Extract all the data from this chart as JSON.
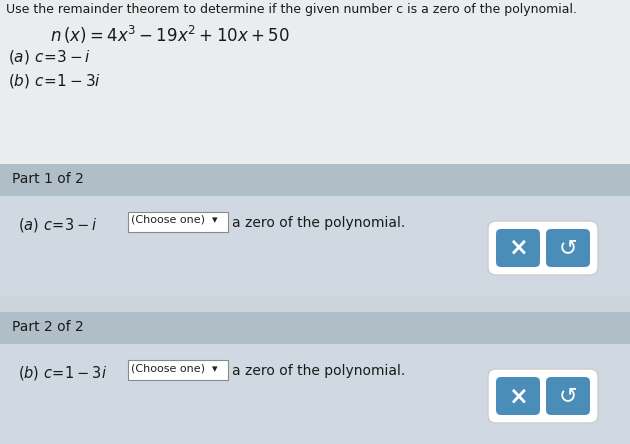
{
  "bg_color": "#ccd4dc",
  "top_bg": "#e8ecef",
  "title_text": "Use the remainder theorem to determine if the given number c is a zero of the polynomial.",
  "part1_header": "Part 1 of 2",
  "part2_header": "Part 2 of 2",
  "choose_one_text": "(Choose one)  ▾",
  "suffix_text": "a zero of the polynomial.",
  "btn_color": "#4a8db8",
  "part_header_bg": "#b0bec8",
  "part_content_bg": "#d0d9e2",
  "dropdown_border": "#777777",
  "dropdown_bg": "#ffffff",
  "btn_border_bg": "#ffffff",
  "font_size_title": 9.0,
  "font_size_body": 10.0,
  "font_size_part_header": 10.0
}
